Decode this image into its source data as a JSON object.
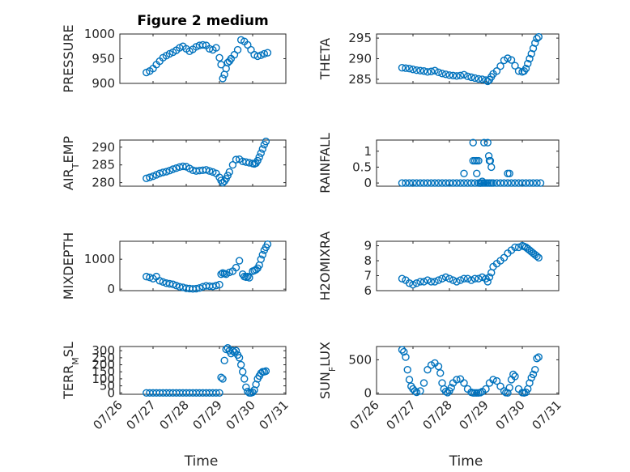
{
  "colors": {
    "series": "#0072BD",
    "axis": "#262626"
  },
  "chart_data": [
    {
      "type": "scatter",
      "title": "Figure 2 medium",
      "ylabel": "PRESSURE",
      "xlabel": "",
      "xlim": [
        "07/26",
        "07/31"
      ],
      "xticks": [
        "07/26",
        "07/27",
        "07/28",
        "07/29",
        "07/30",
        "07/31"
      ],
      "ylim": [
        900,
        1000
      ],
      "yticks": [
        900,
        950,
        1000
      ],
      "x_days": [
        0.8,
        0.9,
        1.0,
        1.1,
        1.2,
        1.3,
        1.4,
        1.5,
        1.6,
        1.7,
        1.8,
        1.9,
        2.0,
        2.1,
        2.2,
        2.3,
        2.4,
        2.5,
        2.6,
        2.7,
        2.8,
        2.9,
        3.0,
        3.05,
        3.1,
        3.15,
        3.2,
        3.25,
        3.3,
        3.35,
        3.45,
        3.55,
        3.65,
        3.75,
        3.85,
        3.95,
        4.05,
        4.15,
        4.25,
        4.35,
        4.45
      ],
      "y": [
        922,
        925,
        930,
        938,
        945,
        952,
        956,
        960,
        963,
        967,
        972,
        975,
        970,
        965,
        969,
        974,
        977,
        978,
        977,
        970,
        968,
        972,
        952,
        938,
        910,
        918,
        930,
        942,
        945,
        950,
        958,
        968,
        988,
        985,
        978,
        968,
        958,
        955,
        957,
        960,
        962
      ]
    },
    {
      "type": "scatter",
      "title": "",
      "ylabel": "THETA",
      "xlabel": "",
      "xlim": [
        "07/26",
        "07/31"
      ],
      "xticks": [
        "07/26",
        "07/27",
        "07/28",
        "07/29",
        "07/30",
        "07/31"
      ],
      "ylim": [
        284,
        296
      ],
      "yticks": [
        285,
        290,
        295
      ],
      "x_days": [
        0.7,
        0.8,
        0.9,
        1.0,
        1.1,
        1.2,
        1.3,
        1.4,
        1.5,
        1.6,
        1.7,
        1.8,
        1.9,
        2.0,
        2.1,
        2.2,
        2.3,
        2.4,
        2.5,
        2.6,
        2.7,
        2.8,
        2.9,
        3.0,
        3.05,
        3.1,
        3.15,
        3.2,
        3.3,
        3.4,
        3.5,
        3.6,
        3.7,
        3.8,
        3.9,
        4.0,
        4.05,
        4.1,
        4.15,
        4.2,
        4.25,
        4.3,
        4.35,
        4.4,
        4.45
      ],
      "y": [
        287.8,
        287.7,
        287.6,
        287.4,
        287.2,
        287.1,
        287.0,
        286.8,
        286.9,
        287.1,
        286.7,
        286.4,
        286.2,
        286.0,
        285.9,
        285.8,
        285.9,
        286.1,
        285.7,
        285.5,
        285.3,
        285.1,
        285.0,
        284.8,
        284.5,
        284.9,
        285.6,
        286.3,
        287.0,
        288.2,
        289.6,
        290.1,
        289.7,
        288.3,
        287.0,
        286.8,
        287.0,
        287.6,
        288.8,
        290.0,
        291.2,
        292.5,
        293.8,
        294.9,
        295.3
      ]
    },
    {
      "type": "scatter",
      "title": "",
      "ylabel": "AIR_TEMP",
      "ylabel_main": "AIR",
      "ylabel_sub": "T",
      "ylabel_rest": "EMP",
      "xlabel": "",
      "xlim": [
        "07/26",
        "07/31"
      ],
      "xticks": [
        "07/26",
        "07/27",
        "07/28",
        "07/29",
        "07/30",
        "07/31"
      ],
      "ylim": [
        279,
        292
      ],
      "yticks": [
        280,
        285,
        290
      ],
      "x_days": [
        0.8,
        0.9,
        1.0,
        1.1,
        1.2,
        1.3,
        1.4,
        1.5,
        1.6,
        1.7,
        1.8,
        1.9,
        2.0,
        2.1,
        2.2,
        2.3,
        2.4,
        2.5,
        2.6,
        2.7,
        2.8,
        2.9,
        3.0,
        3.05,
        3.1,
        3.15,
        3.2,
        3.25,
        3.3,
        3.4,
        3.5,
        3.6,
        3.7,
        3.8,
        3.9,
        4.0,
        4.05,
        4.1,
        4.15,
        4.2,
        4.25,
        4.3,
        4.35,
        4.4
      ],
      "y": [
        281.2,
        281.5,
        281.8,
        282.2,
        282.6,
        282.9,
        283.1,
        283.4,
        283.8,
        284.1,
        284.4,
        284.6,
        284.5,
        284.0,
        283.5,
        283.3,
        283.4,
        283.5,
        283.6,
        283.3,
        283.0,
        282.6,
        281.5,
        280.6,
        280.0,
        280.4,
        281.1,
        282.0,
        283.0,
        285.0,
        286.5,
        286.6,
        286.0,
        285.8,
        285.6,
        285.4,
        285.3,
        285.5,
        286.2,
        287.2,
        288.3,
        289.5,
        290.7,
        291.6
      ]
    },
    {
      "type": "scatter",
      "title": "",
      "ylabel": "RAINFALL",
      "xlabel": "",
      "xlim": [
        "07/26",
        "07/31"
      ],
      "xticks": [
        "07/26",
        "07/27",
        "07/28",
        "07/29",
        "07/30",
        "07/31"
      ],
      "ylim": [
        -0.1,
        1.35
      ],
      "yticks": [
        0,
        0.5,
        1
      ],
      "x_days": [
        0.7,
        0.8,
        0.9,
        1.0,
        1.1,
        1.2,
        1.3,
        1.4,
        1.5,
        1.6,
        1.7,
        1.8,
        1.9,
        2.0,
        2.1,
        2.2,
        2.3,
        2.4,
        2.5,
        2.6,
        2.7,
        2.8,
        2.85,
        2.9,
        2.95,
        3.0,
        3.05,
        3.1,
        3.15,
        3.2,
        3.3,
        3.4,
        3.5,
        3.6,
        3.7,
        3.8,
        3.9,
        4.0,
        4.1,
        4.2,
        4.3,
        4.4,
        4.5,
        2.4,
        2.65,
        2.65,
        2.7,
        2.75,
        2.75,
        2.8,
        2.85,
        2.9,
        2.95,
        3.05,
        3.08,
        3.1,
        3.12,
        3.15,
        3.6,
        3.65
      ],
      "y": [
        0,
        0,
        0,
        0,
        0,
        0,
        0,
        0,
        0,
        0,
        0,
        0,
        0,
        0,
        0,
        0,
        0,
        0,
        0,
        0,
        0,
        0,
        0,
        0,
        0,
        0,
        0,
        0,
        0,
        0,
        0,
        0,
        0,
        0,
        0,
        0,
        0,
        0,
        0,
        0,
        0,
        0,
        0,
        0.3,
        1.27,
        0.7,
        0.7,
        0.3,
        0.7,
        0.7,
        0,
        0.05,
        1.27,
        1.27,
        0.85,
        0.7,
        0.7,
        0.5,
        0.3,
        0.3
      ]
    },
    {
      "type": "scatter",
      "title": "",
      "ylabel": "MIXDEPTH",
      "xlabel": "",
      "xlim": [
        "07/26",
        "07/31"
      ],
      "xticks": [
        "07/26",
        "07/27",
        "07/28",
        "07/29",
        "07/30",
        "07/31"
      ],
      "ylim": [
        -50,
        1600
      ],
      "yticks": [
        0,
        1000
      ],
      "x_days": [
        0.8,
        0.9,
        1.0,
        1.1,
        1.2,
        1.3,
        1.4,
        1.5,
        1.6,
        1.7,
        1.8,
        1.9,
        2.0,
        2.1,
        2.2,
        2.3,
        2.4,
        2.5,
        2.6,
        2.7,
        2.8,
        2.9,
        3.0,
        3.05,
        3.1,
        3.15,
        3.2,
        3.3,
        3.4,
        3.5,
        3.6,
        3.7,
        3.75,
        3.8,
        3.85,
        3.9,
        4.0,
        4.05,
        4.1,
        4.15,
        4.2,
        4.25,
        4.3,
        4.35,
        4.4,
        4.45
      ],
      "y": [
        420,
        390,
        350,
        420,
        280,
        240,
        200,
        180,
        160,
        120,
        80,
        60,
        30,
        20,
        10,
        15,
        40,
        80,
        110,
        100,
        90,
        120,
        150,
        500,
        540,
        520,
        500,
        560,
        600,
        720,
        950,
        500,
        420,
        400,
        420,
        380,
        600,
        620,
        650,
        700,
        800,
        1000,
        1150,
        1300,
        1400,
        1500
      ]
    },
    {
      "type": "scatter",
      "title": "",
      "ylabel": "H2OMIXRA",
      "xlabel": "",
      "xlim": [
        "07/26",
        "07/31"
      ],
      "xticks": [
        "07/26",
        "07/27",
        "07/28",
        "07/29",
        "07/30",
        "07/31"
      ],
      "ylim": [
        6,
        9.3
      ],
      "yticks": [
        6,
        7,
        8,
        9
      ],
      "x_days": [
        0.7,
        0.8,
        0.9,
        1.0,
        1.1,
        1.2,
        1.3,
        1.4,
        1.5,
        1.6,
        1.7,
        1.8,
        1.9,
        2.0,
        2.1,
        2.2,
        2.3,
        2.4,
        2.5,
        2.6,
        2.7,
        2.8,
        2.9,
        3.0,
        3.05,
        3.1,
        3.15,
        3.2,
        3.3,
        3.4,
        3.5,
        3.6,
        3.7,
        3.8,
        3.9,
        4.0,
        4.05,
        4.1,
        4.15,
        4.2,
        4.25,
        4.3,
        4.35,
        4.4,
        4.45
      ],
      "y": [
        6.8,
        6.7,
        6.5,
        6.4,
        6.5,
        6.6,
        6.6,
        6.7,
        6.6,
        6.6,
        6.7,
        6.8,
        6.9,
        6.8,
        6.7,
        6.6,
        6.7,
        6.8,
        6.8,
        6.7,
        6.8,
        6.8,
        6.9,
        6.8,
        6.6,
        6.9,
        7.2,
        7.6,
        7.8,
        8.0,
        8.2,
        8.5,
        8.7,
        8.9,
        8.9,
        9.0,
        8.95,
        8.9,
        8.8,
        8.7,
        8.6,
        8.5,
        8.4,
        8.3,
        8.2
      ]
    },
    {
      "type": "scatter",
      "title": "",
      "ylabel": "TERR_MSL",
      "ylabel_main": "TERR",
      "ylabel_sub": "M",
      "ylabel_rest": "SL",
      "xlabel": "Time",
      "xlim": [
        "07/26",
        "07/31"
      ],
      "xticks": [
        "07/26",
        "07/27",
        "07/28",
        "07/29",
        "07/30",
        "07/31"
      ],
      "ylim": [
        -10,
        330
      ],
      "yticks": [
        0,
        50,
        100,
        150,
        200,
        250,
        300
      ],
      "x_days": [
        0.8,
        0.9,
        1.0,
        1.1,
        1.2,
        1.3,
        1.4,
        1.5,
        1.6,
        1.7,
        1.8,
        1.9,
        2.0,
        2.1,
        2.2,
        2.3,
        2.4,
        2.5,
        2.6,
        2.7,
        2.8,
        2.9,
        3.0,
        3.05,
        3.1,
        3.15,
        3.2,
        3.25,
        3.3,
        3.35,
        3.4,
        3.45,
        3.5,
        3.55,
        3.6,
        3.65,
        3.7,
        3.75,
        3.8,
        3.85,
        3.9,
        3.95,
        4.0,
        4.05,
        4.1,
        4.15,
        4.2,
        4.25,
        4.3,
        4.35,
        4.4
      ],
      "y": [
        0,
        0,
        0,
        0,
        0,
        0,
        0,
        0,
        0,
        0,
        0,
        0,
        0,
        0,
        0,
        0,
        0,
        0,
        0,
        0,
        0,
        0,
        0,
        110,
        100,
        230,
        310,
        320,
        300,
        280,
        300,
        290,
        300,
        270,
        250,
        200,
        150,
        100,
        40,
        10,
        0,
        0,
        5,
        20,
        60,
        100,
        120,
        140,
        150,
        150,
        155
      ]
    },
    {
      "type": "scatter",
      "title": "",
      "ylabel": "SUN_FLUX",
      "ylabel_main": "SUN",
      "ylabel_sub": "F",
      "ylabel_rest": "LUX",
      "xlabel": "Time",
      "xlim": [
        "07/26",
        "07/31"
      ],
      "xticks": [
        "07/26",
        "07/27",
        "07/28",
        "07/29",
        "07/30",
        "07/31"
      ],
      "ylim": [
        -20,
        700
      ],
      "yticks": [
        0,
        500
      ],
      "x_days": [
        0.7,
        0.75,
        0.8,
        0.85,
        0.9,
        0.95,
        1.0,
        1.05,
        1.1,
        1.2,
        1.3,
        1.4,
        1.5,
        1.6,
        1.7,
        1.75,
        1.8,
        1.85,
        1.9,
        1.95,
        2.0,
        2.05,
        2.1,
        2.2,
        2.3,
        2.4,
        2.5,
        2.6,
        2.65,
        2.7,
        2.75,
        2.8,
        2.85,
        2.9,
        3.0,
        3.1,
        3.2,
        3.3,
        3.4,
        3.5,
        3.55,
        3.6,
        3.65,
        3.7,
        3.75,
        3.8,
        3.9,
        4.0,
        4.05,
        4.1,
        4.15,
        4.2,
        4.25,
        4.3,
        4.35,
        4.4,
        4.45
      ],
      "y": [
        650,
        620,
        540,
        350,
        200,
        100,
        60,
        30,
        10,
        30,
        150,
        350,
        420,
        450,
        400,
        300,
        150,
        60,
        20,
        5,
        30,
        80,
        150,
        200,
        210,
        150,
        60,
        10,
        0,
        0,
        0,
        0,
        5,
        20,
        60,
        150,
        200,
        180,
        100,
        30,
        5,
        0,
        80,
        200,
        280,
        250,
        60,
        5,
        0,
        10,
        60,
        150,
        230,
        280,
        350,
        520,
        540
      ]
    }
  ]
}
